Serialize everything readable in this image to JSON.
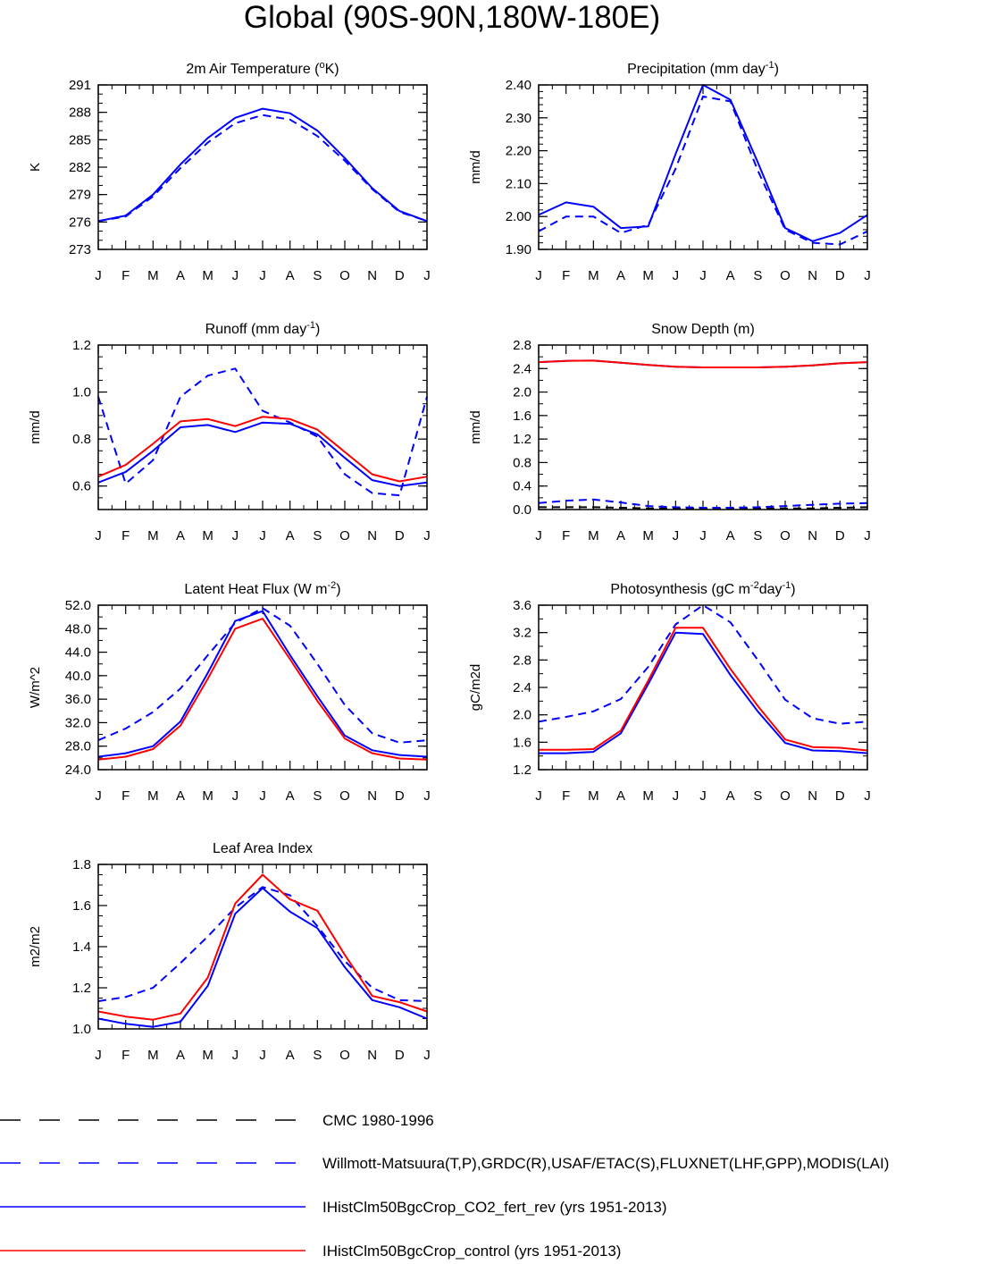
{
  "page_title": "Global (90S-90N,180W-180E)",
  "chart_data": [
    {
      "id": "temp",
      "type": "line",
      "title": "2m Air Temperature (",
      "title_sup": "o",
      "title_after": "K)",
      "ylabel": "K",
      "x": [
        "J",
        "F",
        "M",
        "A",
        "M",
        "J",
        "J",
        "A",
        "S",
        "O",
        "N",
        "D",
        "J"
      ],
      "ylim": [
        273,
        291
      ],
      "yticks": [
        "273",
        "276",
        "279",
        "282",
        "285",
        "288",
        "291"
      ],
      "minor_step": 1,
      "series": [
        {
          "key": "wm",
          "values": [
            276.1,
            276.6,
            278.8,
            281.9,
            284.7,
            286.8,
            287.7,
            287.2,
            285.4,
            282.7,
            279.6,
            277.1,
            276.1
          ]
        },
        {
          "key": "co2",
          "values": [
            276.1,
            276.7,
            279.0,
            282.3,
            285.2,
            287.4,
            288.4,
            287.9,
            286.0,
            283.0,
            279.7,
            277.2,
            276.1
          ]
        }
      ]
    },
    {
      "id": "precip",
      "type": "line",
      "title": "Precipitation (mm day",
      "title_sup": "-1",
      "title_after": ")",
      "ylabel": "mm/d",
      "x": [
        "J",
        "F",
        "M",
        "A",
        "M",
        "J",
        "J",
        "A",
        "S",
        "O",
        "N",
        "D",
        "J"
      ],
      "ylim": [
        1.9,
        2.4
      ],
      "yticks": [
        "1.90",
        "2.00",
        "2.10",
        "2.20",
        "2.30",
        "2.40"
      ],
      "minor_step": 0.02,
      "series": [
        {
          "key": "wm",
          "values": [
            1.955,
            2.0,
            2.0,
            1.95,
            1.975,
            2.145,
            2.365,
            2.35,
            2.14,
            1.96,
            1.92,
            1.915,
            1.955
          ]
        },
        {
          "key": "co2",
          "values": [
            2.005,
            2.043,
            2.03,
            1.965,
            1.97,
            2.19,
            2.4,
            2.355,
            2.165,
            1.965,
            1.925,
            1.95,
            2.005
          ]
        }
      ]
    },
    {
      "id": "runoff",
      "type": "line",
      "title": "Runoff (mm day",
      "title_sup": "-1",
      "title_after": ")",
      "ylabel": "mm/d",
      "x": [
        "J",
        "F",
        "M",
        "A",
        "M",
        "J",
        "J",
        "A",
        "S",
        "O",
        "N",
        "D",
        "J"
      ],
      "ylim": [
        0.5,
        1.2
      ],
      "yticks": [
        "0.6",
        "0.8",
        "1.0",
        "1.2"
      ],
      "minor_step": 0.05,
      "series": [
        {
          "key": "wm",
          "values": [
            0.98,
            0.61,
            0.71,
            0.98,
            1.07,
            1.1,
            0.92,
            0.87,
            0.81,
            0.65,
            0.57,
            0.56,
            0.98
          ]
        },
        {
          "key": "co2",
          "values": [
            0.615,
            0.66,
            0.75,
            0.85,
            0.86,
            0.83,
            0.87,
            0.865,
            0.82,
            0.72,
            0.625,
            0.6,
            0.615
          ]
        },
        {
          "key": "ctl",
          "values": [
            0.64,
            0.69,
            0.78,
            0.875,
            0.885,
            0.855,
            0.895,
            0.885,
            0.84,
            0.745,
            0.65,
            0.62,
            0.64
          ]
        }
      ]
    },
    {
      "id": "snow",
      "type": "line",
      "title": "Snow Depth (m)",
      "title_sup": "",
      "title_after": "",
      "ylabel": "mm/d",
      "x": [
        "J",
        "F",
        "M",
        "A",
        "M",
        "J",
        "J",
        "A",
        "S",
        "O",
        "N",
        "D",
        "J"
      ],
      "ylim": [
        0.0,
        2.8
      ],
      "yticks": [
        "0.0",
        "0.4",
        "0.8",
        "1.2",
        "1.6",
        "2.0",
        "2.4",
        "2.8"
      ],
      "minor_step": 0.2,
      "series": [
        {
          "key": "cmc",
          "values": [
            0.04,
            0.04,
            0.04,
            0.03,
            0.02,
            0.02,
            0.02,
            0.02,
            0.02,
            0.02,
            0.02,
            0.03,
            0.04
          ]
        },
        {
          "key": "wm",
          "values": [
            0.11,
            0.15,
            0.17,
            0.12,
            0.06,
            0.04,
            0.03,
            0.03,
            0.04,
            0.06,
            0.08,
            0.1,
            0.11
          ]
        },
        {
          "key": "co2",
          "values": [
            2.51,
            2.53,
            2.535,
            2.5,
            2.46,
            2.43,
            2.42,
            2.42,
            2.42,
            2.43,
            2.455,
            2.49,
            2.51
          ]
        },
        {
          "key": "ctl",
          "values": [
            2.51,
            2.53,
            2.535,
            2.5,
            2.46,
            2.43,
            2.42,
            2.42,
            2.42,
            2.43,
            2.455,
            2.49,
            2.51
          ]
        }
      ]
    },
    {
      "id": "lhf",
      "type": "line",
      "title": "Latent Heat Flux (W m",
      "title_sup": "-2",
      "title_after": ")",
      "ylabel": "W/m^2",
      "x": [
        "J",
        "F",
        "M",
        "A",
        "M",
        "J",
        "J",
        "A",
        "S",
        "O",
        "N",
        "D",
        "J"
      ],
      "ylim": [
        24.0,
        52.0
      ],
      "yticks": [
        "24.0",
        "28.0",
        "32.0",
        "36.0",
        "40.0",
        "44.0",
        "48.0",
        "52.0"
      ],
      "minor_step": 2,
      "series": [
        {
          "key": "wm",
          "values": [
            29.0,
            31.0,
            33.8,
            37.8,
            43.5,
            49.0,
            51.5,
            48.5,
            42.0,
            35.0,
            30.2,
            28.6,
            29.0
          ]
        },
        {
          "key": "co2",
          "values": [
            26.2,
            26.8,
            28.0,
            32.2,
            40.5,
            49.3,
            51.0,
            43.5,
            36.5,
            29.8,
            27.3,
            26.5,
            26.2
          ]
        },
        {
          "key": "ctl",
          "values": [
            25.7,
            26.2,
            27.5,
            31.5,
            39.5,
            48.0,
            49.7,
            42.8,
            35.7,
            29.3,
            26.8,
            25.9,
            25.7
          ]
        }
      ]
    },
    {
      "id": "gpp",
      "type": "line",
      "title": "Photosynthesis (gC m",
      "title_sup": "-2",
      "title_after": "day",
      "title_sup2": "-1",
      "title_end": ")",
      "ylabel": "gC/m2d",
      "x": [
        "J",
        "F",
        "M",
        "A",
        "M",
        "J",
        "J",
        "A",
        "S",
        "O",
        "N",
        "D",
        "J"
      ],
      "ylim": [
        1.2,
        3.6
      ],
      "yticks": [
        "1.2",
        "1.6",
        "2.0",
        "2.4",
        "2.8",
        "3.2",
        "3.6"
      ],
      "minor_step": 0.2,
      "series": [
        {
          "key": "wm",
          "values": [
            1.9,
            1.97,
            2.05,
            2.23,
            2.7,
            3.32,
            3.6,
            3.35,
            2.8,
            2.22,
            1.95,
            1.87,
            1.9
          ]
        },
        {
          "key": "co2",
          "values": [
            1.44,
            1.44,
            1.46,
            1.73,
            2.45,
            3.2,
            3.18,
            2.58,
            2.05,
            1.59,
            1.48,
            1.47,
            1.44
          ]
        },
        {
          "key": "ctl",
          "values": [
            1.49,
            1.49,
            1.5,
            1.77,
            2.5,
            3.27,
            3.27,
            2.67,
            2.13,
            1.64,
            1.53,
            1.52,
            1.48
          ]
        }
      ]
    },
    {
      "id": "lai",
      "type": "line",
      "title": "Leaf Area Index",
      "title_sup": "",
      "title_after": "",
      "ylabel": "m2/m2",
      "x": [
        "J",
        "F",
        "M",
        "A",
        "M",
        "J",
        "J",
        "A",
        "S",
        "O",
        "N",
        "D",
        "J"
      ],
      "ylim": [
        1.0,
        1.8
      ],
      "yticks": [
        "1.0",
        "1.2",
        "1.4",
        "1.6",
        "1.8"
      ],
      "minor_step": 0.05,
      "series": [
        {
          "key": "wm",
          "values": [
            1.135,
            1.155,
            1.2,
            1.32,
            1.45,
            1.59,
            1.69,
            1.65,
            1.5,
            1.33,
            1.2,
            1.14,
            1.135
          ]
        },
        {
          "key": "co2",
          "values": [
            1.05,
            1.025,
            1.01,
            1.035,
            1.21,
            1.56,
            1.685,
            1.57,
            1.49,
            1.3,
            1.14,
            1.105,
            1.05
          ]
        },
        {
          "key": "ctl",
          "values": [
            1.085,
            1.06,
            1.045,
            1.075,
            1.25,
            1.61,
            1.75,
            1.63,
            1.575,
            1.36,
            1.16,
            1.13,
            1.085
          ]
        }
      ]
    }
  ],
  "styles": {
    "cmc": {
      "color": "#000000",
      "dash": "dashed"
    },
    "wm": {
      "color": "#0000ff",
      "dash": "dashed"
    },
    "co2": {
      "color": "#0000ff",
      "dash": "solid"
    },
    "ctl": {
      "color": "#ff0000",
      "dash": "solid"
    }
  },
  "legend": [
    {
      "key": "cmc",
      "label": "CMC 1980-1996"
    },
    {
      "key": "wm",
      "label": "Willmott-Matsuura(T,P),GRDC(R),USAF/ETAC(S),FLUXNET(LHF,GPP),MODIS(LAI)"
    },
    {
      "key": "co2",
      "label": "IHistClm50BgcCrop_CO2_fert_rev (yrs 1951-2013)"
    },
    {
      "key": "ctl",
      "label": "IHistClm50BgcCrop_control (yrs 1951-2013)"
    }
  ]
}
